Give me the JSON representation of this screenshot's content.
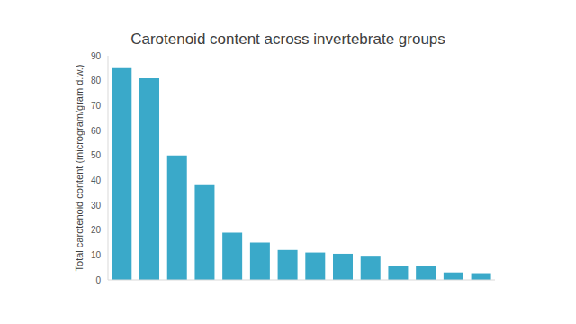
{
  "chart_data": {
    "type": "bar",
    "title": "Carotenoid content across invertebrate groups",
    "y_label": "Total carotenoid content (microgram/gram d.w.)",
    "categories": [
      null,
      null,
      null,
      null,
      null,
      null,
      null,
      null,
      null,
      null,
      null,
      null,
      null,
      null
    ],
    "values": [
      85,
      81,
      50,
      38,
      19,
      15,
      12,
      11,
      10.5,
      9.7,
      5.7,
      5.5,
      3,
      2.7
    ],
    "color": "#3aa9c9",
    "ylim": [
      0,
      90
    ],
    "yticks": [
      0,
      10,
      20,
      30,
      40,
      50,
      60,
      70,
      80,
      90
    ],
    "grid": false
  }
}
